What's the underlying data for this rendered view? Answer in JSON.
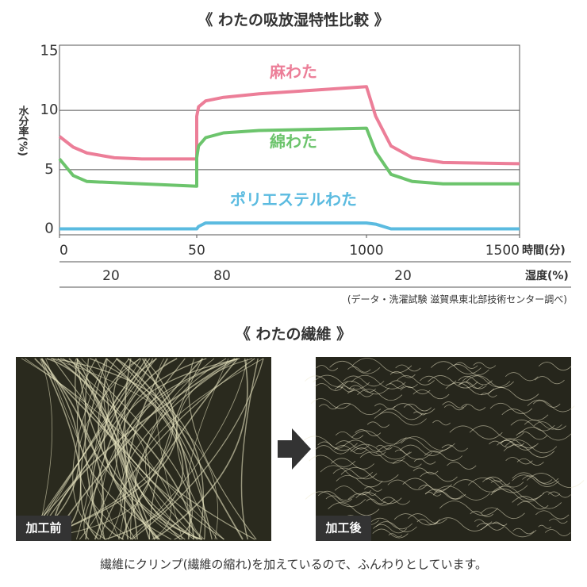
{
  "chart_data": {
    "type": "line",
    "title": "《 わたの吸放湿特性比較 》",
    "x_label": "時間(分)",
    "y_label": "水分率(%)",
    "x": [
      0,
      5,
      10,
      20,
      30,
      50,
      50,
      60,
      100,
      200,
      400,
      700,
      1000,
      1030,
      1080,
      1150,
      1250,
      1500
    ],
    "series": [
      {
        "name": "麻わた",
        "color": "#ec7e98",
        "values": [
          7.8,
          6.9,
          6.4,
          6.0,
          5.9,
          5.9,
          9.5,
          10.3,
          10.8,
          11.1,
          11.4,
          11.7,
          12.0,
          9.5,
          7.0,
          6.0,
          5.6,
          5.5
        ]
      },
      {
        "name": "綿わた",
        "color": "#6cc46c",
        "values": [
          5.9,
          4.5,
          4.0,
          3.9,
          3.8,
          3.6,
          6.0,
          7.0,
          7.7,
          8.1,
          8.3,
          8.4,
          8.5,
          6.5,
          4.6,
          4.0,
          3.8,
          3.8
        ]
      },
      {
        "name": "ポリエステルわた",
        "color": "#5bbbe0",
        "values": [
          0,
          0,
          0,
          0,
          0,
          0,
          0,
          0.2,
          0.5,
          0.5,
          0.5,
          0.5,
          0.5,
          0.4,
          0,
          0,
          0,
          0
        ]
      }
    ],
    "xticks": [
      0,
      50,
      1000,
      1500
    ],
    "ylim": [
      -0.5,
      15.5
    ],
    "yticks": [
      0,
      5,
      10,
      15
    ],
    "grid": true,
    "humidity": {
      "label": "湿度(%)",
      "values": [
        20,
        80,
        20
      ]
    },
    "source": "(データ・洗濯試験 滋賀県東北部技術センター調べ)"
  },
  "fiber_section": {
    "title": "《 わたの繊維 》",
    "photos": [
      {
        "label": "加工前"
      },
      {
        "label": "加工後"
      }
    ],
    "caption": "繊維にクリンプ(繊維の縮れ)を加えているので、ふんわりとしています。"
  }
}
